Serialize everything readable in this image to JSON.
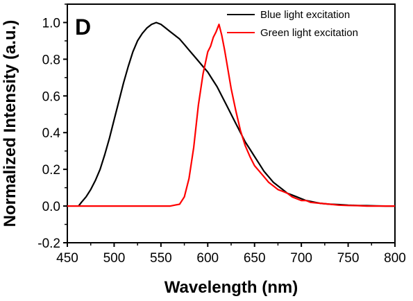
{
  "chart_data": {
    "type": "line",
    "panel_label": "D",
    "title": "",
    "xlabel": "Wavelength (nm)",
    "ylabel": "Normalized Intensity (a.u.)",
    "xlim": [
      450,
      800
    ],
    "ylim": [
      -0.2,
      1.1
    ],
    "xticks": [
      450,
      500,
      550,
      600,
      650,
      700,
      750,
      800
    ],
    "yticks": [
      -0.2,
      0.0,
      0.2,
      0.4,
      0.6,
      0.8,
      1.0
    ],
    "ytick_labels": [
      "-0.2",
      "0.0",
      "0.2",
      "0.4",
      "0.6",
      "0.8",
      "1.0"
    ],
    "grid": false,
    "legend_position": "top-right",
    "series": [
      {
        "name": "Blue light excitation",
        "color": "#000000",
        "x": [
          462,
          465,
          470,
          475,
          480,
          485,
          490,
          495,
          500,
          505,
          510,
          515,
          520,
          525,
          530,
          535,
          540,
          545,
          550,
          555,
          560,
          565,
          570,
          575,
          580,
          585,
          590,
          595,
          600,
          605,
          610,
          615,
          620,
          625,
          630,
          635,
          640,
          645,
          650,
          655,
          660,
          665,
          670,
          675,
          680,
          685,
          690,
          695,
          700,
          705,
          710,
          715,
          720,
          730,
          740,
          750,
          760,
          770,
          780,
          790,
          800
        ],
        "values": [
          0.0,
          0.02,
          0.05,
          0.09,
          0.14,
          0.2,
          0.28,
          0.37,
          0.47,
          0.57,
          0.67,
          0.76,
          0.84,
          0.9,
          0.94,
          0.97,
          0.99,
          1.0,
          0.99,
          0.97,
          0.95,
          0.93,
          0.91,
          0.88,
          0.85,
          0.82,
          0.79,
          0.76,
          0.73,
          0.69,
          0.65,
          0.6,
          0.55,
          0.5,
          0.45,
          0.4,
          0.35,
          0.31,
          0.27,
          0.23,
          0.19,
          0.16,
          0.13,
          0.11,
          0.09,
          0.07,
          0.06,
          0.05,
          0.04,
          0.03,
          0.025,
          0.02,
          0.015,
          0.01,
          0.008,
          0.005,
          0.003,
          0.002,
          0.001,
          0.0,
          0.0
        ]
      },
      {
        "name": "Green light excitation",
        "color": "#ff0000",
        "x": [
          450,
          460,
          470,
          480,
          490,
          500,
          510,
          520,
          530,
          540,
          550,
          560,
          570,
          575,
          580,
          585,
          590,
          595,
          600,
          603,
          606,
          609,
          612,
          615,
          618,
          620,
          625,
          630,
          635,
          640,
          645,
          650,
          655,
          660,
          665,
          670,
          675,
          680,
          685,
          690,
          695,
          700,
          705,
          710,
          720,
          730,
          740,
          750,
          760,
          770,
          780,
          790,
          800
        ],
        "values": [
          0.0,
          0.0,
          0.0,
          0.0,
          0.0,
          0.0,
          0.0,
          0.0,
          0.0,
          0.0,
          0.0,
          0.0,
          0.01,
          0.05,
          0.15,
          0.32,
          0.55,
          0.72,
          0.84,
          0.87,
          0.92,
          0.95,
          0.99,
          0.93,
          0.85,
          0.79,
          0.64,
          0.52,
          0.41,
          0.33,
          0.27,
          0.22,
          0.19,
          0.16,
          0.13,
          0.11,
          0.09,
          0.08,
          0.07,
          0.05,
          0.04,
          0.03,
          0.03,
          0.02,
          0.015,
          0.01,
          0.005,
          0.003,
          0.002,
          0.0,
          0.0,
          0.0,
          0.0
        ]
      }
    ]
  }
}
